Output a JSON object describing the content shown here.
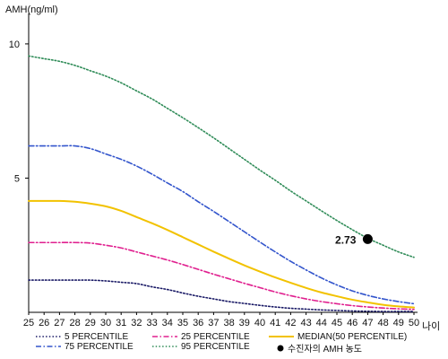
{
  "chart_data": {
    "type": "line",
    "ylabel": "AMH(ng/ml)",
    "xlabel": "나이",
    "x": [
      25,
      26,
      27,
      28,
      29,
      30,
      31,
      32,
      33,
      34,
      35,
      36,
      37,
      38,
      39,
      40,
      41,
      42,
      43,
      44,
      45,
      46,
      47,
      48,
      49,
      50
    ],
    "xlim": [
      25,
      50
    ],
    "ylim": [
      0,
      11
    ],
    "yticks": [
      5,
      10
    ],
    "grid": false,
    "legend_position": "bottom",
    "series": [
      {
        "name": "5 PERCENTILE",
        "color": "#1a1a66",
        "style": "dotted",
        "values": [
          1.2,
          1.2,
          1.2,
          1.2,
          1.2,
          1.17,
          1.12,
          1.07,
          0.95,
          0.85,
          0.72,
          0.6,
          0.5,
          0.4,
          0.33,
          0.26,
          0.2,
          0.15,
          0.12,
          0.09,
          0.07,
          0.05,
          0.04,
          0.03,
          0.03,
          0.03
        ]
      },
      {
        "name": "25 PERCENTILE",
        "color": "#e0208f",
        "style": "dashdot",
        "values": [
          2.6,
          2.6,
          2.6,
          2.6,
          2.58,
          2.5,
          2.4,
          2.25,
          2.1,
          1.95,
          1.78,
          1.6,
          1.42,
          1.25,
          1.08,
          0.92,
          0.76,
          0.62,
          0.5,
          0.4,
          0.32,
          0.25,
          0.2,
          0.16,
          0.13,
          0.11
        ]
      },
      {
        "name": "MEDIAN(50 PERCENTILE)",
        "color": "#f2c200",
        "style": "solid",
        "values": [
          4.15,
          4.15,
          4.15,
          4.12,
          4.05,
          3.95,
          3.78,
          3.55,
          3.32,
          3.07,
          2.8,
          2.53,
          2.26,
          2.0,
          1.75,
          1.52,
          1.3,
          1.1,
          0.91,
          0.74,
          0.6,
          0.47,
          0.37,
          0.28,
          0.22,
          0.18
        ]
      },
      {
        "name": "75 PERCENTILE",
        "color": "#3355cc",
        "style": "dashdot",
        "values": [
          6.2,
          6.2,
          6.2,
          6.2,
          6.1,
          5.9,
          5.7,
          5.45,
          5.15,
          4.82,
          4.5,
          4.12,
          3.76,
          3.38,
          3.0,
          2.62,
          2.25,
          1.9,
          1.58,
          1.28,
          1.02,
          0.8,
          0.63,
          0.5,
          0.4,
          0.32
        ]
      },
      {
        "name": "95 PERCENTILE",
        "color": "#2e8b57",
        "style": "dotted",
        "values": [
          9.55,
          9.45,
          9.35,
          9.2,
          9.0,
          8.8,
          8.55,
          8.25,
          7.95,
          7.6,
          7.25,
          6.88,
          6.5,
          6.1,
          5.7,
          5.3,
          4.92,
          4.52,
          4.15,
          3.78,
          3.42,
          3.08,
          2.76,
          2.5,
          2.25,
          2.05
        ]
      }
    ],
    "marker": {
      "name": "수진자의 AMH 농도",
      "x": 47,
      "y": 2.73,
      "label": "2.73",
      "color": "#000000"
    }
  }
}
